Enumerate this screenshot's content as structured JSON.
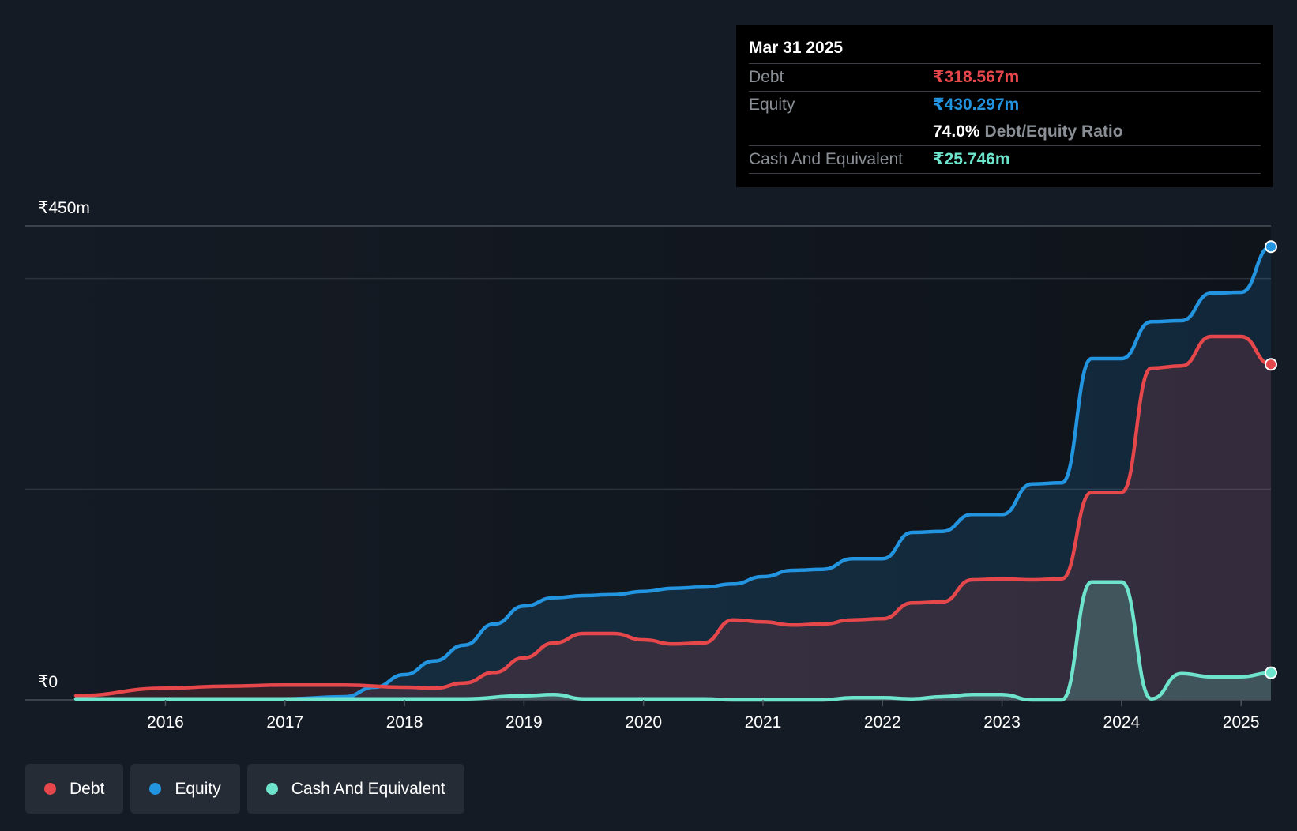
{
  "colors": {
    "debt": "#e5474b",
    "equity": "#2394e0",
    "cash": "#6ee4cc",
    "background": "#151b24"
  },
  "tooltip": {
    "date": "Mar 31 2025",
    "debt_label": "Debt",
    "debt_value": "₹318.567m",
    "equity_label": "Equity",
    "equity_value": "₹430.297m",
    "ratio_value": "74.0%",
    "ratio_label": "Debt/Equity Ratio",
    "cash_label": "Cash And Equivalent",
    "cash_value": "₹25.746m"
  },
  "legend": [
    {
      "label": "Debt",
      "color": "#e5474b"
    },
    {
      "label": "Equity",
      "color": "#2394e0"
    },
    {
      "label": "Cash And Equivalent",
      "color": "#6ee4cc"
    }
  ],
  "chart_data": {
    "type": "area",
    "title": "",
    "xlabel": "",
    "ylabel": "",
    "y_top_label": "₹450m",
    "y_bottom_label": "₹0",
    "ylim": [
      0,
      450
    ],
    "xlim": [
      2015.25,
      2025.25
    ],
    "x_ticks": [
      2016,
      2017,
      2018,
      2019,
      2020,
      2021,
      2022,
      2023,
      2024,
      2025
    ],
    "x_tick_labels": [
      "2016",
      "2017",
      "2018",
      "2019",
      "2020",
      "2021",
      "2022",
      "2023",
      "2024",
      "2025"
    ],
    "series": [
      {
        "name": "Debt",
        "points": [
          [
            2015.25,
            4
          ],
          [
            2016.0,
            11
          ],
          [
            2016.5,
            13
          ],
          [
            2017.0,
            14
          ],
          [
            2017.5,
            14
          ],
          [
            2018.0,
            12
          ],
          [
            2018.25,
            11
          ],
          [
            2018.5,
            16
          ],
          [
            2018.75,
            26
          ],
          [
            2019.0,
            40
          ],
          [
            2019.25,
            54
          ],
          [
            2019.5,
            63
          ],
          [
            2019.75,
            63
          ],
          [
            2020.0,
            57
          ],
          [
            2020.25,
            53
          ],
          [
            2020.5,
            54
          ],
          [
            2020.75,
            76
          ],
          [
            2021.0,
            74
          ],
          [
            2021.25,
            71
          ],
          [
            2021.5,
            72
          ],
          [
            2021.75,
            76
          ],
          [
            2022.0,
            77
          ],
          [
            2022.25,
            92
          ],
          [
            2022.5,
            93
          ],
          [
            2022.75,
            114
          ],
          [
            2023.0,
            115
          ],
          [
            2023.25,
            114
          ],
          [
            2023.5,
            115
          ],
          [
            2023.75,
            197
          ],
          [
            2024.0,
            197
          ],
          [
            2024.25,
            315
          ],
          [
            2024.5,
            317
          ],
          [
            2024.75,
            345
          ],
          [
            2025.0,
            345
          ],
          [
            2025.25,
            318.567
          ]
        ]
      },
      {
        "name": "Equity",
        "points": [
          [
            2015.25,
            1
          ],
          [
            2016.0,
            1
          ],
          [
            2017.0,
            1
          ],
          [
            2017.5,
            3
          ],
          [
            2017.75,
            12
          ],
          [
            2018.0,
            24
          ],
          [
            2018.25,
            37
          ],
          [
            2018.5,
            52
          ],
          [
            2018.75,
            72
          ],
          [
            2019.0,
            89
          ],
          [
            2019.25,
            97
          ],
          [
            2019.5,
            99
          ],
          [
            2019.75,
            100
          ],
          [
            2020.0,
            103
          ],
          [
            2020.25,
            106
          ],
          [
            2020.5,
            107
          ],
          [
            2020.75,
            110
          ],
          [
            2021.0,
            117
          ],
          [
            2021.25,
            123
          ],
          [
            2021.5,
            124
          ],
          [
            2021.75,
            134
          ],
          [
            2022.0,
            134
          ],
          [
            2022.25,
            159
          ],
          [
            2022.5,
            160
          ],
          [
            2022.75,
            176
          ],
          [
            2023.0,
            176
          ],
          [
            2023.25,
            205
          ],
          [
            2023.5,
            206
          ],
          [
            2023.75,
            324
          ],
          [
            2024.0,
            324
          ],
          [
            2024.25,
            359
          ],
          [
            2024.5,
            360
          ],
          [
            2024.75,
            386
          ],
          [
            2025.0,
            387
          ],
          [
            2025.25,
            430.297
          ]
        ]
      },
      {
        "name": "Cash And Equivalent",
        "points": [
          [
            2015.25,
            1
          ],
          [
            2016.0,
            1
          ],
          [
            2017.0,
            1
          ],
          [
            2018.0,
            1
          ],
          [
            2018.5,
            1
          ],
          [
            2019.0,
            4
          ],
          [
            2019.25,
            5
          ],
          [
            2019.5,
            1
          ],
          [
            2020.0,
            1
          ],
          [
            2020.5,
            1
          ],
          [
            2020.75,
            0
          ],
          [
            2021.0,
            0
          ],
          [
            2021.5,
            0
          ],
          [
            2021.75,
            2
          ],
          [
            2022.0,
            2
          ],
          [
            2022.25,
            1
          ],
          [
            2022.5,
            3
          ],
          [
            2022.75,
            5
          ],
          [
            2023.0,
            5
          ],
          [
            2023.25,
            0
          ],
          [
            2023.5,
            0
          ],
          [
            2023.75,
            112
          ],
          [
            2024.0,
            112
          ],
          [
            2024.25,
            1
          ],
          [
            2024.5,
            25
          ],
          [
            2024.75,
            22
          ],
          [
            2025.0,
            22
          ],
          [
            2025.25,
            25.746
          ]
        ]
      }
    ]
  }
}
